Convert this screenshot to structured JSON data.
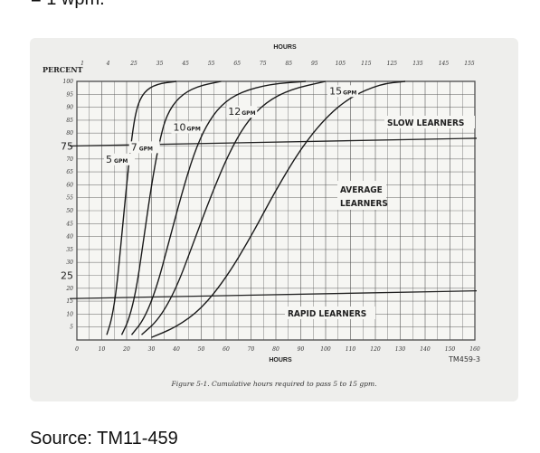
{
  "page": {
    "top_text": "= 1 wpm.",
    "source_text": "Source: TM11-459"
  },
  "chart_data": {
    "type": "line",
    "x_axis_title_top": "HOURS",
    "x_axis_title_bottom": "HOURS",
    "y_axis_title": "PERCENT",
    "x_ticks_bottom": [
      "0",
      "10",
      "20",
      "30",
      "40",
      "50",
      "60",
      "70",
      "80",
      "90",
      "100",
      "110",
      "120",
      "130",
      "140",
      "150",
      "160"
    ],
    "x_ticks_top": [
      "1",
      "4",
      "25",
      "35",
      "45",
      "55",
      "65",
      "75",
      "85",
      "95",
      "105",
      "115",
      "125",
      "135",
      "145",
      "155"
    ],
    "y_ticks": [
      "100",
      "95",
      "90",
      "85",
      "80",
      "75",
      "70",
      "65",
      "60",
      "55",
      "50",
      "45",
      "40",
      "35",
      "30",
      "25",
      "20",
      "15",
      "10",
      "5"
    ],
    "y_ticks_emphasized": [
      "75",
      "25"
    ],
    "xlim": [
      0,
      160
    ],
    "ylim": [
      0,
      100
    ],
    "series": [
      {
        "name": "5 GPM",
        "label_num": "5",
        "label_unit": "GPM",
        "points": [
          [
            12,
            2
          ],
          [
            14,
            8
          ],
          [
            16,
            20
          ],
          [
            18,
            40
          ],
          [
            20,
            60
          ],
          [
            22,
            78
          ],
          [
            24,
            90
          ],
          [
            27,
            96
          ],
          [
            32,
            99
          ],
          [
            40,
            100
          ]
        ]
      },
      {
        "name": "7 GPM",
        "label_num": "7",
        "label_unit": "GPM",
        "points": [
          [
            18,
            2
          ],
          [
            21,
            8
          ],
          [
            24,
            20
          ],
          [
            27,
            40
          ],
          [
            30,
            60
          ],
          [
            33,
            76
          ],
          [
            36,
            87
          ],
          [
            41,
            94
          ],
          [
            48,
            98
          ],
          [
            58,
            100
          ]
        ]
      },
      {
        "name": "10 GPM",
        "label_num": "10",
        "label_unit": "GPM",
        "points": [
          [
            22,
            2
          ],
          [
            27,
            8
          ],
          [
            32,
            20
          ],
          [
            37,
            38
          ],
          [
            42,
            56
          ],
          [
            47,
            72
          ],
          [
            52,
            83
          ],
          [
            58,
            91
          ],
          [
            66,
            96
          ],
          [
            78,
            99
          ],
          [
            92,
            100
          ]
        ]
      },
      {
        "name": "12 GPM",
        "label_num": "12",
        "label_unit": "GPM",
        "points": [
          [
            26,
            2
          ],
          [
            33,
            8
          ],
          [
            40,
            20
          ],
          [
            47,
            38
          ],
          [
            54,
            56
          ],
          [
            61,
            72
          ],
          [
            68,
            84
          ],
          [
            76,
            92
          ],
          [
            86,
            97
          ],
          [
            100,
            100
          ]
        ]
      },
      {
        "name": "15 GPM",
        "label_num": "15",
        "label_unit": "GPM",
        "points": [
          [
            30,
            1
          ],
          [
            40,
            5
          ],
          [
            50,
            12
          ],
          [
            60,
            24
          ],
          [
            70,
            40
          ],
          [
            80,
            58
          ],
          [
            90,
            74
          ],
          [
            100,
            86
          ],
          [
            110,
            94
          ],
          [
            122,
            99
          ],
          [
            132,
            100
          ]
        ]
      }
    ],
    "reference_lines": [
      {
        "name": "SLOW LEARNERS",
        "y_start": 75,
        "y_end": 78
      },
      {
        "name": "RAPID LEARNERS",
        "y_start": 16,
        "y_end": 19
      }
    ],
    "region_labels": {
      "slow": "SLOW LEARNERS",
      "average_line1": "AVERAGE",
      "average_line2": "LEARNERS",
      "rapid": "RAPID LEARNERS"
    },
    "figure_number": "TM459-3",
    "caption": "Figure 5-1. Cumulative hours required to pass 5 to 15 gpm.",
    "grid": true,
    "legend": "none (curves labeled inline)"
  }
}
